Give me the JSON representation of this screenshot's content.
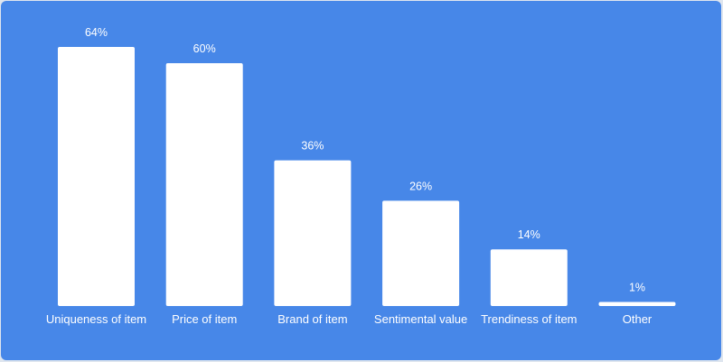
{
  "chart_data": {
    "type": "bar",
    "categories": [
      "Uniqueness of item",
      "Price of item",
      "Brand of item",
      "Sentimental value",
      "Trendiness of item",
      "Other"
    ],
    "values": [
      64,
      60,
      36,
      26,
      14,
      1
    ],
    "value_labels": [
      "64%",
      "60%",
      "36%",
      "26%",
      "14%",
      "1%"
    ],
    "unit": "%",
    "ylim": [
      0,
      64
    ],
    "grid": false,
    "legend": "none",
    "colors": {
      "background": "#4787e8",
      "bar": "#ffffff",
      "text": "#ffffff"
    }
  }
}
